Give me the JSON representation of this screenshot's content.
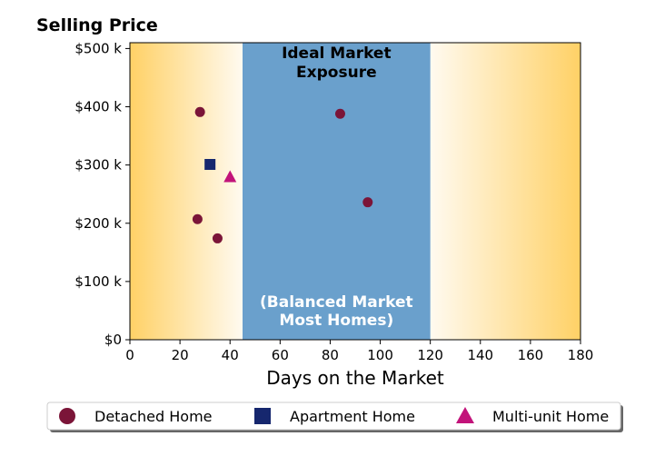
{
  "chart_data": {
    "type": "scatter",
    "title": "Selling Price",
    "xlabel": "Days on the Market",
    "ylabel": "",
    "xlim": [
      0,
      180
    ],
    "ylim": [
      0,
      510000
    ],
    "x_ticks": [
      0,
      20,
      40,
      60,
      80,
      100,
      120,
      140,
      160,
      180
    ],
    "x_tick_labels": [
      "0",
      "20",
      "40",
      "60",
      "80",
      "100",
      "120",
      "140",
      "160",
      "180"
    ],
    "y_ticks": [
      0,
      100000,
      200000,
      300000,
      400000,
      500000
    ],
    "y_tick_labels": [
      "$0",
      "$100 k",
      "$200 k",
      "$300 k",
      "$400 k",
      "$500 k"
    ],
    "grid": false,
    "legend_position": "bottom",
    "band": {
      "x_range": [
        45,
        120
      ],
      "color": "#6aa0cc",
      "label_top_line1": "Ideal Market",
      "label_top_line2": "Exposure",
      "label_bottom_line1": "(Balanced Market",
      "label_bottom_line2": "Most Homes)"
    },
    "background_gradient": {
      "edge_color": "#ffd166",
      "center_color": "#fffaf0"
    },
    "series": [
      {
        "name": "Detached Home",
        "marker": "circle",
        "color": "#7b1538",
        "points": [
          {
            "x": 28,
            "y": 391000
          },
          {
            "x": 84,
            "y": 388000
          },
          {
            "x": 95,
            "y": 236000
          },
          {
            "x": 27,
            "y": 207000
          },
          {
            "x": 35,
            "y": 174000
          }
        ]
      },
      {
        "name": "Apartment Home",
        "marker": "square",
        "color": "#16276e",
        "points": [
          {
            "x": 32,
            "y": 301000
          }
        ]
      },
      {
        "name": "Multi-unit Home",
        "marker": "triangle",
        "color": "#c2137a",
        "points": [
          {
            "x": 40,
            "y": 280000
          }
        ]
      }
    ]
  }
}
